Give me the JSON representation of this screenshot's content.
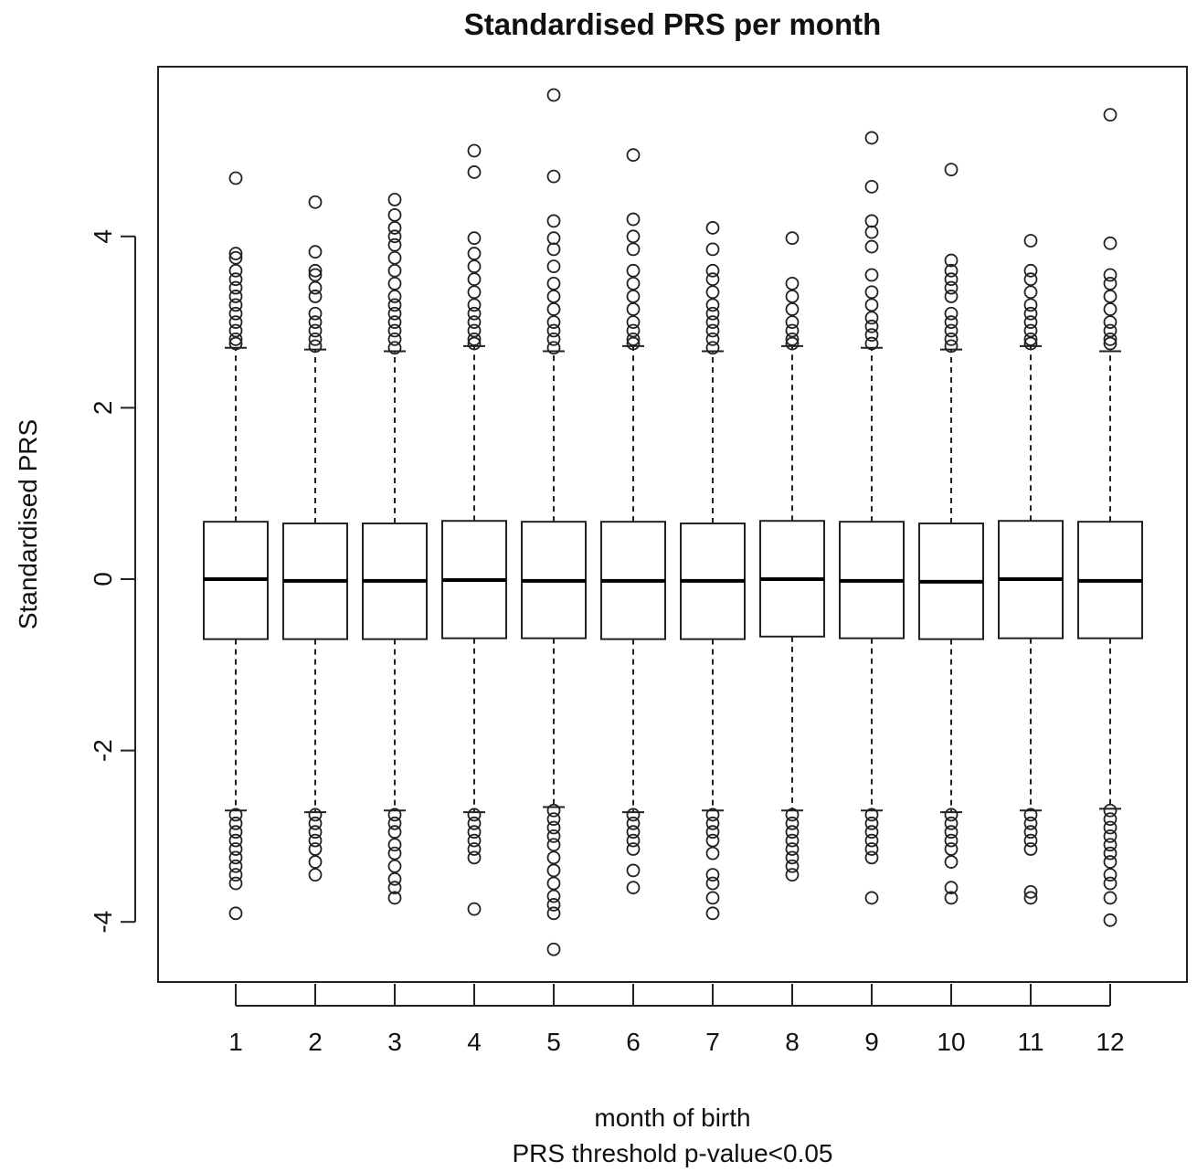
{
  "chart_data": {
    "type": "boxplot",
    "title": "Standardised PRS per month",
    "xlabel": "month of birth",
    "xlabel_sub": "PRS threshold p-value<0.05",
    "ylabel": "Standardised PRS",
    "ylim": [
      -4.6,
      5.9
    ],
    "yticks": [
      -4,
      -2,
      0,
      2,
      4
    ],
    "categories": [
      "1",
      "2",
      "3",
      "4",
      "5",
      "6",
      "7",
      "8",
      "9",
      "10",
      "11",
      "12"
    ],
    "grid": false,
    "legend": "none",
    "boxes": [
      {
        "month": "1",
        "q1": -0.7,
        "median": 0.0,
        "q3": 0.67,
        "whisker_low": -2.7,
        "whisker_high": 2.7,
        "outliers": [
          4.68,
          3.8,
          3.75,
          3.6,
          3.5,
          3.4,
          3.3,
          3.2,
          3.1,
          3.0,
          2.9,
          2.8,
          2.75,
          -2.75,
          -2.85,
          -2.95,
          -3.05,
          -3.15,
          -3.25,
          -3.35,
          -3.45,
          -3.55,
          -3.9
        ]
      },
      {
        "month": "2",
        "q1": -0.7,
        "median": -0.02,
        "q3": 0.65,
        "whisker_low": -2.72,
        "whisker_high": 2.68,
        "outliers": [
          4.4,
          3.82,
          3.6,
          3.55,
          3.4,
          3.3,
          3.1,
          3.0,
          2.9,
          2.8,
          2.72,
          -2.75,
          -2.85,
          -2.95,
          -3.05,
          -3.15,
          -3.3,
          -3.45
        ]
      },
      {
        "month": "3",
        "q1": -0.7,
        "median": -0.02,
        "q3": 0.65,
        "whisker_low": -2.7,
        "whisker_high": 2.66,
        "outliers": [
          4.43,
          4.25,
          4.1,
          4.0,
          3.9,
          3.75,
          3.6,
          3.45,
          3.3,
          3.2,
          3.1,
          3.0,
          2.9,
          2.8,
          2.7,
          -2.75,
          -2.85,
          -2.95,
          -3.1,
          -3.2,
          -3.35,
          -3.5,
          -3.6,
          -3.72
        ]
      },
      {
        "month": "4",
        "q1": -0.69,
        "median": -0.01,
        "q3": 0.68,
        "whisker_low": -2.72,
        "whisker_high": 2.72,
        "outliers": [
          5.0,
          4.75,
          3.98,
          3.8,
          3.65,
          3.5,
          3.35,
          3.2,
          3.1,
          3.0,
          2.9,
          2.8,
          2.75,
          -2.75,
          -2.85,
          -2.95,
          -3.05,
          -3.15,
          -3.25,
          -3.85
        ]
      },
      {
        "month": "5",
        "q1": -0.69,
        "median": -0.02,
        "q3": 0.67,
        "whisker_low": -2.66,
        "whisker_high": 2.66,
        "outliers": [
          5.65,
          4.7,
          4.18,
          3.98,
          3.85,
          3.65,
          3.45,
          3.3,
          3.15,
          3.0,
          2.9,
          2.8,
          2.7,
          -2.7,
          -2.8,
          -2.9,
          -3.0,
          -3.1,
          -3.25,
          -3.4,
          -3.55,
          -3.7,
          -3.8,
          -3.9,
          -4.32
        ]
      },
      {
        "month": "6",
        "q1": -0.7,
        "median": -0.02,
        "q3": 0.67,
        "whisker_low": -2.72,
        "whisker_high": 2.72,
        "outliers": [
          4.95,
          4.2,
          4.0,
          3.85,
          3.6,
          3.45,
          3.3,
          3.15,
          3.0,
          2.9,
          2.8,
          2.75,
          -2.75,
          -2.85,
          -2.95,
          -3.05,
          -3.15,
          -3.4,
          -3.6
        ]
      },
      {
        "month": "7",
        "q1": -0.7,
        "median": -0.02,
        "q3": 0.65,
        "whisker_low": -2.7,
        "whisker_high": 2.66,
        "outliers": [
          4.1,
          3.85,
          3.6,
          3.5,
          3.35,
          3.2,
          3.1,
          3.0,
          2.9,
          2.8,
          2.7,
          -2.75,
          -2.85,
          -2.95,
          -3.05,
          -3.2,
          -3.45,
          -3.55,
          -3.72,
          -3.9
        ]
      },
      {
        "month": "8",
        "q1": -0.67,
        "median": 0.0,
        "q3": 0.68,
        "whisker_low": -2.7,
        "whisker_high": 2.72,
        "outliers": [
          3.98,
          3.45,
          3.3,
          3.15,
          3.0,
          2.9,
          2.8,
          2.75,
          -2.75,
          -2.85,
          -2.95,
          -3.05,
          -3.15,
          -3.25,
          -3.35,
          -3.45
        ]
      },
      {
        "month": "9",
        "q1": -0.69,
        "median": -0.02,
        "q3": 0.67,
        "whisker_low": -2.7,
        "whisker_high": 2.7,
        "outliers": [
          5.15,
          4.58,
          4.18,
          4.05,
          3.88,
          3.55,
          3.35,
          3.2,
          3.05,
          2.95,
          2.85,
          2.75,
          -2.75,
          -2.85,
          -2.95,
          -3.05,
          -3.15,
          -3.25,
          -3.72
        ]
      },
      {
        "month": "10",
        "q1": -0.7,
        "median": -0.03,
        "q3": 0.65,
        "whisker_low": -2.72,
        "whisker_high": 2.68,
        "outliers": [
          4.78,
          3.72,
          3.6,
          3.5,
          3.4,
          3.3,
          3.1,
          3.0,
          2.9,
          2.8,
          2.72,
          -2.75,
          -2.85,
          -2.95,
          -3.05,
          -3.15,
          -3.3,
          -3.6,
          -3.72
        ]
      },
      {
        "month": "11",
        "q1": -0.69,
        "median": 0.0,
        "q3": 0.68,
        "whisker_low": -2.7,
        "whisker_high": 2.72,
        "outliers": [
          3.95,
          3.6,
          3.5,
          3.35,
          3.2,
          3.1,
          3.0,
          2.9,
          2.8,
          2.75,
          -2.75,
          -2.85,
          -2.95,
          -3.05,
          -3.15,
          -3.65,
          -3.72
        ]
      },
      {
        "month": "12",
        "q1": -0.69,
        "median": -0.02,
        "q3": 0.67,
        "whisker_low": -2.68,
        "whisker_high": 2.66,
        "outliers": [
          5.42,
          3.92,
          3.55,
          3.45,
          3.3,
          3.15,
          3.0,
          2.9,
          2.8,
          2.75,
          -2.7,
          -2.8,
          -2.9,
          -3.0,
          -3.1,
          -3.2,
          -3.3,
          -3.45,
          -3.55,
          -3.72,
          -3.98
        ]
      }
    ]
  }
}
